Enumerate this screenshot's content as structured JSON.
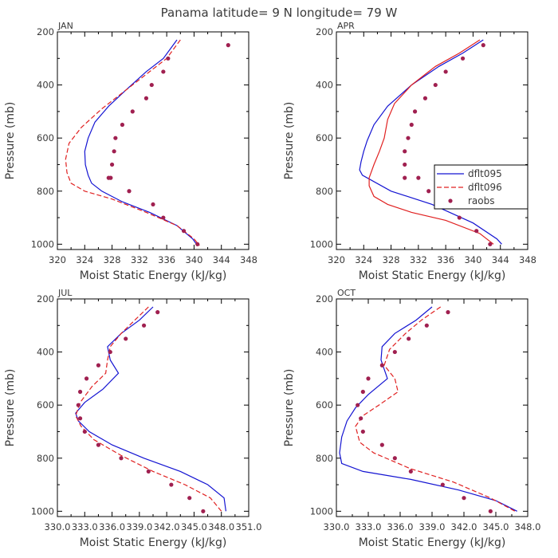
{
  "figure_title": "Panama  latitude= 9 N longitude= 79 W",
  "legend": {
    "labels": [
      "dflt095",
      "dflt096",
      "raobs"
    ]
  },
  "colors": {
    "dflt095": "#1414d2",
    "dflt096": "#e02020",
    "raobs": "#a02050",
    "axes": "#000000"
  },
  "chart_data": [
    {
      "type": "line",
      "panel": "JAN",
      "xlabel": "Moist Static Energy (kJ/kg)",
      "ylabel": "Pressure (mb)",
      "xlim": [
        320,
        348
      ],
      "ylim": [
        1020,
        200
      ],
      "xticks": [
        320,
        324,
        328,
        332,
        336,
        340,
        344,
        348
      ],
      "xtick_labels": [
        "320",
        "324",
        "328",
        "332",
        "336",
        "340",
        "344",
        "348"
      ],
      "yticks": [
        200,
        400,
        600,
        800,
        1000
      ],
      "ytick_labels": [
        "200",
        "400",
        "600",
        "800",
        "1000"
      ],
      "series": [
        {
          "name": "dflt095",
          "style": "solid",
          "x": [
            337.5,
            335.5,
            333.0,
            330.0,
            327.5,
            325.5,
            324.5,
            324.0,
            324.1,
            324.5,
            325.0,
            326.5,
            329.5,
            333.5,
            337.5,
            339.8,
            340.5
          ],
          "y": [
            230,
            300,
            350,
            420,
            480,
            540,
            600,
            650,
            700,
            740,
            770,
            800,
            840,
            880,
            930,
            980,
            1005
          ]
        },
        {
          "name": "dflt096",
          "style": "dashed",
          "x": [
            338.0,
            336.0,
            333.5,
            330.0,
            326.5,
            323.5,
            321.7,
            321.2,
            321.4,
            322.0,
            324.0,
            328.0,
            333.0,
            337.5,
            340.0,
            340.8
          ],
          "y": [
            230,
            300,
            350,
            420,
            490,
            560,
            620,
            680,
            730,
            770,
            800,
            830,
            880,
            930,
            980,
            1005
          ]
        },
        {
          "name": "raobs",
          "style": "points",
          "x": [
            345.0,
            336.2,
            335.5,
            333.8,
            333.0,
            331.0,
            329.5,
            328.5,
            328.3,
            328.0,
            327.5,
            327.8,
            330.5,
            334.0,
            335.5,
            338.5,
            340.5
          ],
          "y": [
            250,
            300,
            350,
            400,
            450,
            500,
            550,
            600,
            650,
            700,
            750,
            750,
            800,
            850,
            900,
            950,
            1000
          ]
        }
      ]
    },
    {
      "type": "line",
      "panel": "APR",
      "xlabel": "Moist Static Energy (kJ/kg)",
      "ylabel": "Pressure (mb)",
      "xlim": [
        320,
        348
      ],
      "ylim": [
        1020,
        200
      ],
      "xticks": [
        320,
        324,
        328,
        332,
        336,
        340,
        344,
        348
      ],
      "xtick_labels": [
        "320",
        "324",
        "328",
        "332",
        "336",
        "340",
        "344",
        "348"
      ],
      "yticks": [
        200,
        400,
        600,
        800,
        1000
      ],
      "ytick_labels": [
        "200",
        "400",
        "600",
        "800",
        "1000"
      ],
      "series": [
        {
          "name": "dflt095",
          "style": "solid",
          "x": [
            341.5,
            338.5,
            335.0,
            331.0,
            327.5,
            325.5,
            324.5,
            324.0,
            323.6,
            323.4,
            323.8,
            328.0,
            334.0,
            340.0,
            343.5,
            344.2
          ],
          "y": [
            230,
            280,
            330,
            400,
            480,
            550,
            610,
            650,
            690,
            720,
            740,
            800,
            850,
            920,
            980,
            1000
          ]
        },
        {
          "name": "dflt096",
          "style": "solid",
          "x": [
            341.0,
            338.0,
            334.5,
            331.0,
            328.5,
            327.5,
            327.0,
            326.3,
            325.5,
            324.8,
            324.8,
            325.5,
            327.5,
            331.0,
            336.0,
            341.0,
            343.0
          ],
          "y": [
            230,
            280,
            330,
            400,
            470,
            530,
            600,
            650,
            700,
            750,
            780,
            820,
            850,
            880,
            910,
            960,
            1000
          ]
        },
        {
          "name": "raobs",
          "style": "points",
          "x": [
            341.5,
            338.5,
            336.0,
            334.5,
            333.0,
            331.5,
            331.0,
            330.5,
            330.0,
            330.0,
            330.0,
            332.0,
            333.5,
            335.5,
            335.5,
            338.0,
            340.5,
            342.5
          ],
          "y": [
            250,
            300,
            350,
            400,
            450,
            500,
            550,
            600,
            650,
            700,
            750,
            750,
            800,
            820,
            850,
            900,
            950,
            1000
          ]
        }
      ]
    },
    {
      "type": "line",
      "panel": "JUL",
      "xlabel": "Moist Static Energy (kJ/kg)",
      "ylabel": "Pressure (mb)",
      "xlim": [
        330.0,
        351.0
      ],
      "ylim": [
        1020,
        200
      ],
      "xticks": [
        330.0,
        333.0,
        336.0,
        339.0,
        342.0,
        345.0,
        348.0,
        351.0
      ],
      "xtick_labels": [
        "330.0",
        "333.0",
        "336.0",
        "339.0",
        "342.0",
        "345.0",
        "348.0",
        "351.0"
      ],
      "yticks": [
        200,
        400,
        600,
        800,
        1000
      ],
      "ytick_labels": [
        "200",
        "400",
        "600",
        "800",
        "1000"
      ],
      "series": [
        {
          "name": "dflt095",
          "style": "solid",
          "x": [
            340.5,
            339.0,
            337.0,
            335.5,
            335.8,
            336.7,
            335.0,
            333.0,
            332.0,
            332.3,
            333.5,
            336.0,
            339.5,
            343.5,
            346.5,
            348.3,
            348.5
          ],
          "y": [
            230,
            280,
            330,
            380,
            430,
            480,
            540,
            590,
            630,
            660,
            700,
            750,
            800,
            850,
            900,
            950,
            1000
          ]
        },
        {
          "name": "dflt096",
          "style": "dashed",
          "x": [
            340.0,
            338.5,
            337.0,
            335.8,
            335.5,
            335.3,
            333.8,
            332.5,
            332.0,
            332.6,
            334.0,
            337.0,
            340.5,
            344.0,
            346.8,
            348.0
          ],
          "y": [
            230,
            280,
            330,
            380,
            430,
            480,
            530,
            590,
            640,
            680,
            730,
            790,
            850,
            900,
            950,
            1000
          ]
        },
        {
          "name": "raobs",
          "style": "points",
          "x": [
            341.0,
            339.5,
            337.5,
            335.8,
            334.5,
            333.2,
            332.5,
            332.3,
            332.5,
            333.0,
            334.5,
            337.0,
            340.0,
            342.5,
            344.5,
            346.0
          ],
          "y": [
            250,
            300,
            350,
            400,
            450,
            500,
            550,
            600,
            650,
            700,
            750,
            800,
            850,
            900,
            950,
            1000
          ]
        }
      ]
    },
    {
      "type": "line",
      "panel": "OCT",
      "xlabel": "Moist Static Energy (kJ/kg)",
      "ylabel": "Pressure (mb)",
      "xlim": [
        330.0,
        348.0
      ],
      "ylim": [
        1020,
        200
      ],
      "xticks": [
        330.0,
        333.0,
        336.0,
        339.0,
        342.0,
        345.0,
        348.0
      ],
      "xtick_labels": [
        "330.0",
        "333.0",
        "336.0",
        "339.0",
        "342.0",
        "345.0",
        "348.0"
      ],
      "yticks": [
        200,
        400,
        600,
        800,
        1000
      ],
      "ytick_labels": [
        "200",
        "400",
        "600",
        "800",
        "1000"
      ],
      "series": [
        {
          "name": "dflt095",
          "style": "solid",
          "x": [
            339.0,
            337.5,
            335.5,
            334.3,
            334.2,
            334.8,
            333.0,
            331.8,
            331.0,
            330.5,
            330.3,
            330.5,
            332.5,
            337.0,
            341.5,
            345.0,
            347.0
          ],
          "y": [
            230,
            280,
            330,
            380,
            430,
            500,
            560,
            610,
            660,
            720,
            780,
            820,
            850,
            880,
            920,
            960,
            1000
          ]
        },
        {
          "name": "dflt096",
          "style": "dashed",
          "x": [
            339.8,
            338.0,
            336.5,
            335.0,
            334.5,
            335.5,
            335.8,
            334.0,
            332.5,
            331.8,
            332.2,
            333.5,
            337.0,
            341.0,
            344.5,
            346.8
          ],
          "y": [
            230,
            280,
            330,
            390,
            450,
            500,
            550,
            600,
            640,
            680,
            740,
            780,
            840,
            890,
            950,
            1000
          ]
        },
        {
          "name": "raobs",
          "style": "points",
          "x": [
            340.5,
            338.5,
            336.8,
            335.5,
            334.3,
            333.0,
            332.5,
            332.0,
            332.3,
            332.5,
            334.3,
            335.5,
            337.0,
            340.0,
            342.0,
            344.5
          ],
          "y": [
            250,
            300,
            350,
            400,
            450,
            500,
            550,
            600,
            650,
            700,
            750,
            800,
            850,
            900,
            950,
            1000
          ]
        }
      ]
    }
  ]
}
